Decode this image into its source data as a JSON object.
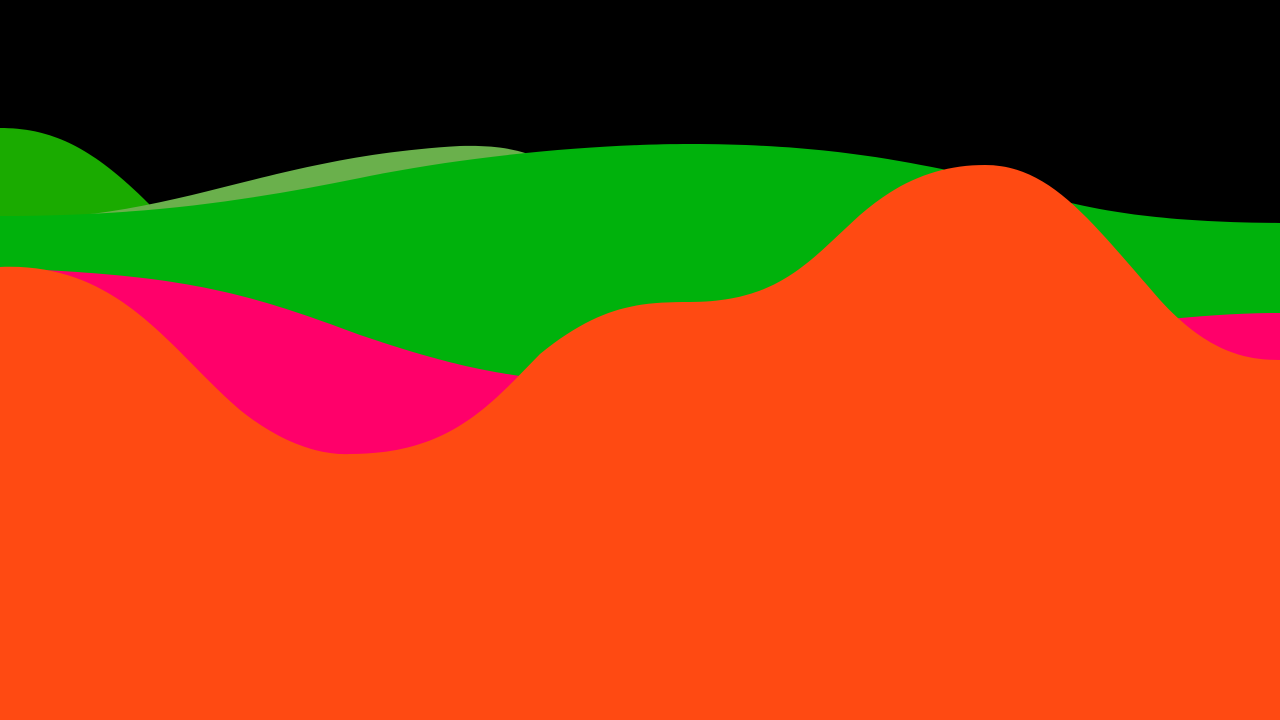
{
  "scene": {
    "background_color": "#000000",
    "layers": [
      {
        "name": "back-left-green-wave",
        "color": "#1aab00"
      },
      {
        "name": "olive-green-wave",
        "color": "#6ab04c"
      },
      {
        "name": "bright-green-wave",
        "color": "#00b20c"
      },
      {
        "name": "pink-wave",
        "color": "#ff006a"
      },
      {
        "name": "orange-red-wave",
        "color": "#ff4a12"
      }
    ]
  }
}
